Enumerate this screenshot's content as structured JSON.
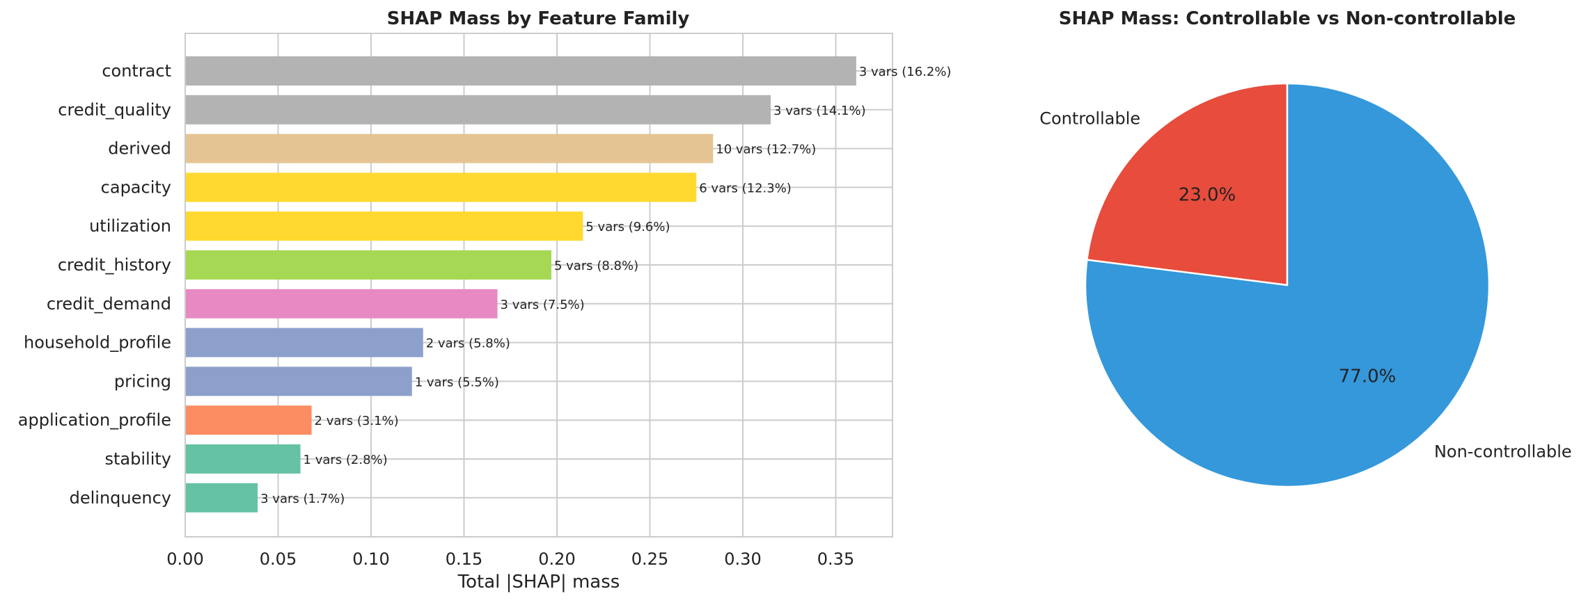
{
  "chart_data": [
    {
      "type": "bar",
      "orientation": "horizontal",
      "title": "SHAP Mass by Feature Family",
      "xlabel": "Total |SHAP| mass",
      "ylabel": "",
      "xlim": [
        0,
        0.38
      ],
      "xticks": [
        "0.00",
        "0.05",
        "0.10",
        "0.15",
        "0.20",
        "0.25",
        "0.30",
        "0.35"
      ],
      "xtick_values": [
        0,
        0.05,
        0.1,
        0.15,
        0.2,
        0.25,
        0.3,
        0.35
      ],
      "grid": true,
      "categories": [
        "contract",
        "credit_quality",
        "derived",
        "capacity",
        "utilization",
        "credit_history",
        "credit_demand",
        "household_profile",
        "pricing",
        "application_profile",
        "stability",
        "delinquency"
      ],
      "values": [
        0.361,
        0.315,
        0.284,
        0.275,
        0.214,
        0.197,
        0.168,
        0.128,
        0.122,
        0.068,
        0.062,
        0.039
      ],
      "labels": [
        "3 vars (16.2%)",
        "3 vars (14.1%)",
        "10 vars (12.7%)",
        "6 vars (12.3%)",
        "5 vars (9.6%)",
        "5 vars (8.8%)",
        "3 vars (7.5%)",
        "2 vars (5.8%)",
        "1 vars (5.5%)",
        "2 vars (3.1%)",
        "1 vars (2.8%)",
        "3 vars (1.7%)"
      ],
      "colors": [
        "#b3b3b3",
        "#b3b3b3",
        "#e5c494",
        "#ffd92f",
        "#ffd92f",
        "#a6d854",
        "#e78ac3",
        "#8da0cb",
        "#8da0cb",
        "#fc8d62",
        "#66c2a5",
        "#66c2a5"
      ]
    },
    {
      "type": "pie",
      "title": "SHAP Mass: Controllable vs Non-controllable",
      "slices": [
        {
          "label": "Controllable",
          "value": 23.0,
          "pct_label": "23.0%",
          "color": "#e74c3c"
        },
        {
          "label": "Non-controllable",
          "value": 77.0,
          "pct_label": "77.0%",
          "color": "#3498db"
        }
      ]
    }
  ]
}
